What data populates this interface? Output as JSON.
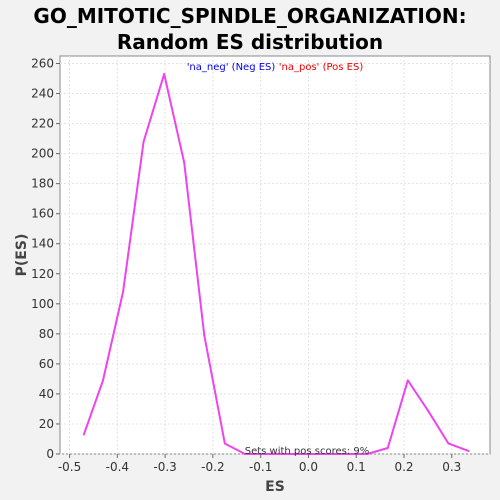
{
  "chart_data": {
    "type": "line",
    "title_lines": [
      "GO_MITOTIC_SPINDLE_ORGANIZATION:",
      "Random ES distribution"
    ],
    "xlabel": "ES",
    "ylabel": "P(ES)",
    "xlim": [
      -0.52,
      0.38
    ],
    "ylim": [
      0,
      265
    ],
    "xticks": [
      "-0.5",
      "-0.4",
      "-0.3",
      "-0.2",
      "-0.1",
      "0.0",
      "0.1",
      "0.2",
      "0.3"
    ],
    "yticks": [
      "0",
      "20",
      "40",
      "60",
      "80",
      "100",
      "120",
      "140",
      "160",
      "180",
      "200",
      "220",
      "240",
      "260"
    ],
    "grid": true,
    "legend_placement": "top-center",
    "series": [
      {
        "name": "'na_neg' (Neg ES)",
        "color": "#0000ee",
        "x": [],
        "y": []
      },
      {
        "name": "'na_pos' (Pos ES)",
        "color": "#ee0000",
        "x": [],
        "y": []
      },
      {
        "color": "#ee44ee",
        "x": [
          -0.47,
          -0.43,
          -0.388,
          -0.345,
          -0.302,
          -0.26,
          -0.218,
          -0.175,
          -0.133,
          -0.09,
          -0.047,
          -0.005,
          0.038,
          0.08,
          0.123,
          0.166,
          0.208,
          0.25,
          0.293,
          0.335
        ],
        "y": [
          13,
          49,
          108,
          208,
          253,
          194,
          79,
          7,
          0,
          0,
          0,
          0,
          0,
          0,
          0,
          4,
          49,
          29,
          7,
          2
        ]
      }
    ],
    "annotation": "Sets with pos scores: 9%"
  }
}
